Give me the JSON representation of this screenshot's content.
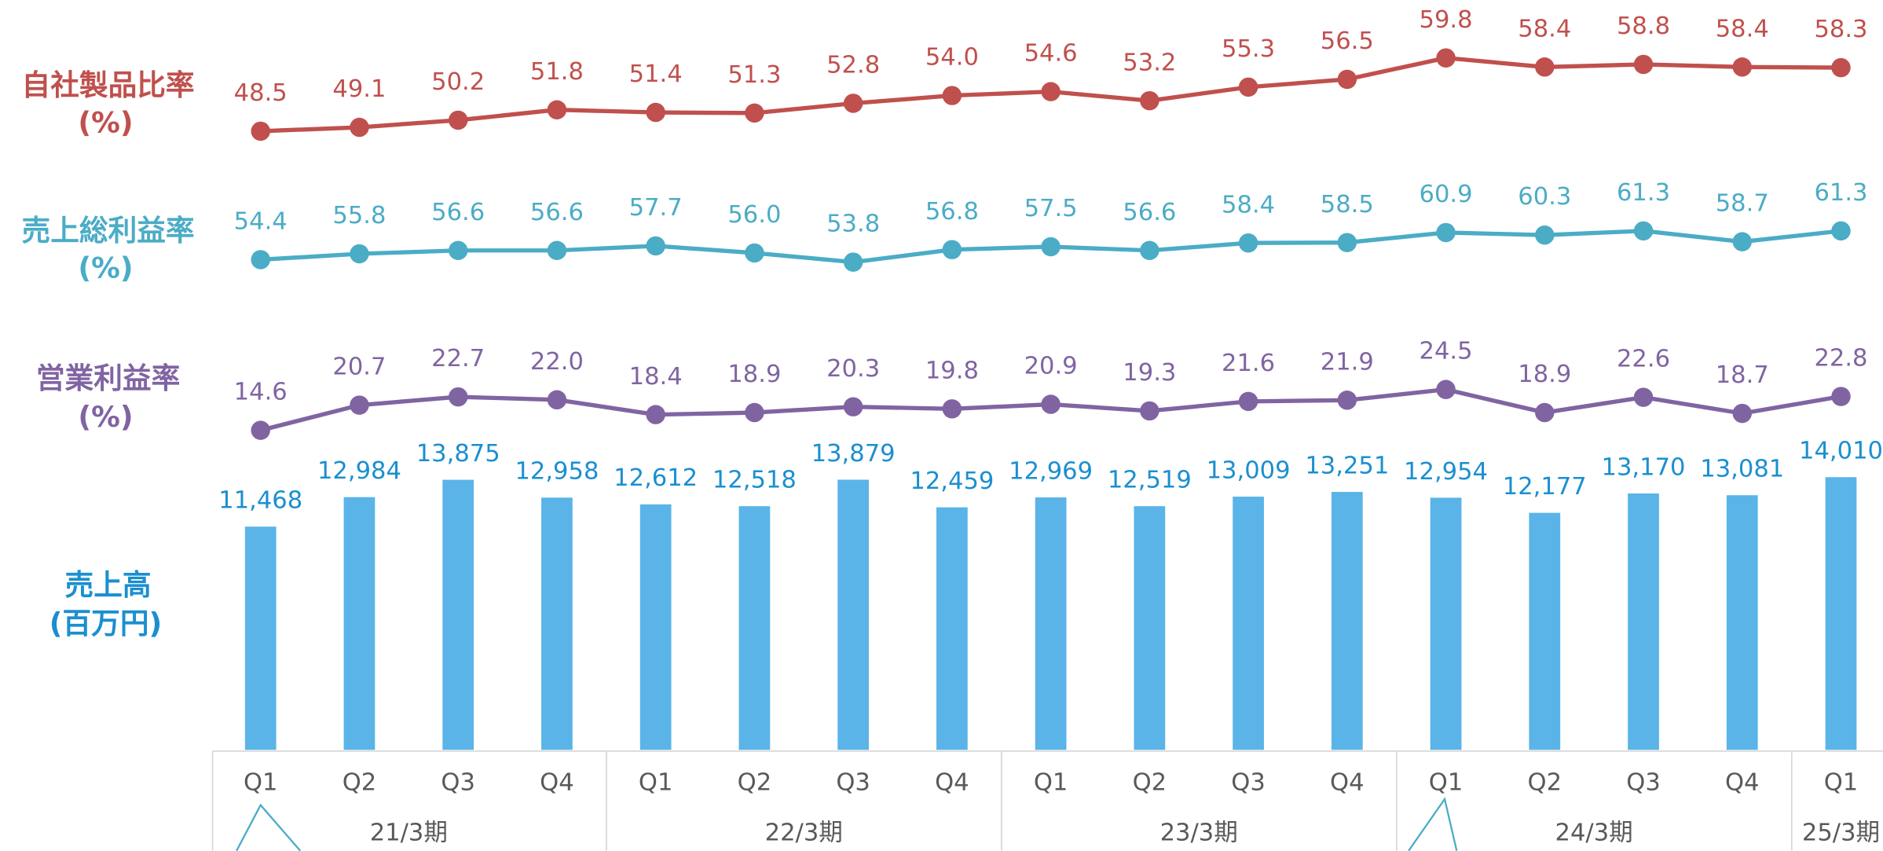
{
  "chart_data": {
    "type": "combo",
    "categories": [
      "Q1",
      "Q2",
      "Q3",
      "Q4",
      "Q1",
      "Q2",
      "Q3",
      "Q4",
      "Q1",
      "Q2",
      "Q3",
      "Q4",
      "Q1",
      "Q2",
      "Q3",
      "Q4",
      "Q1"
    ],
    "groups": [
      "21/3期",
      "22/3期",
      "23/3期",
      "24/3期",
      "25/3期"
    ],
    "series": [
      {
        "name": "自社製品比率",
        "unit": "(%)",
        "type": "line",
        "color": "#c0504d",
        "values": [
          48.5,
          49.1,
          50.2,
          51.8,
          51.4,
          51.3,
          52.8,
          54.0,
          54.6,
          53.2,
          55.3,
          56.5,
          59.8,
          58.4,
          58.8,
          58.4,
          58.3
        ],
        "value_labels": [
          "48.5",
          "49.1",
          "50.2",
          "51.8",
          "51.4",
          "51.3",
          "52.8",
          "54.0",
          "54.6",
          "53.2",
          "55.3",
          "56.5",
          "59.8",
          "58.4",
          "58.8",
          "58.4",
          "58.3"
        ]
      },
      {
        "name": "売上総利益率",
        "unit": "(%)",
        "type": "line",
        "color": "#4bacc6",
        "values": [
          54.4,
          55.8,
          56.6,
          56.6,
          57.7,
          56.0,
          53.8,
          56.8,
          57.5,
          56.6,
          58.4,
          58.5,
          60.9,
          60.3,
          61.3,
          58.7,
          61.3
        ],
        "value_labels": [
          "54.4",
          "55.8",
          "56.6",
          "56.6",
          "57.7",
          "56.0",
          "53.8",
          "56.8",
          "57.5",
          "56.6",
          "58.4",
          "58.5",
          "60.9",
          "60.3",
          "61.3",
          "58.7",
          "61.3"
        ]
      },
      {
        "name": "営業利益率",
        "unit": "(%)",
        "type": "line",
        "color": "#8064a2",
        "values": [
          14.6,
          20.7,
          22.7,
          22.0,
          18.4,
          18.9,
          20.3,
          19.8,
          20.9,
          19.3,
          21.6,
          21.9,
          24.5,
          18.9,
          22.6,
          18.7,
          22.8
        ],
        "value_labels": [
          "14.6",
          "20.7",
          "22.7",
          "22.0",
          "18.4",
          "18.9",
          "20.3",
          "19.8",
          "20.9",
          "19.3",
          "21.6",
          "21.9",
          "24.5",
          "18.9",
          "22.6",
          "18.7",
          "22.8"
        ]
      },
      {
        "name": "売上高",
        "unit": "(百万円)",
        "type": "bar",
        "color": "#5ab4e8",
        "values": [
          11468,
          12984,
          13875,
          12958,
          12612,
          12518,
          13879,
          12459,
          12969,
          12519,
          13009,
          13251,
          12954,
          12177,
          13170,
          13081,
          14010
        ],
        "value_labels": [
          "11,468",
          "12,984",
          "13,875",
          "12,958",
          "12,612",
          "12,518",
          "13,879",
          "12,459",
          "12,969",
          "12,519",
          "13,009",
          "13,251",
          "12,954",
          "12,177",
          "13,170",
          "13,081",
          "14,010"
        ]
      }
    ]
  }
}
